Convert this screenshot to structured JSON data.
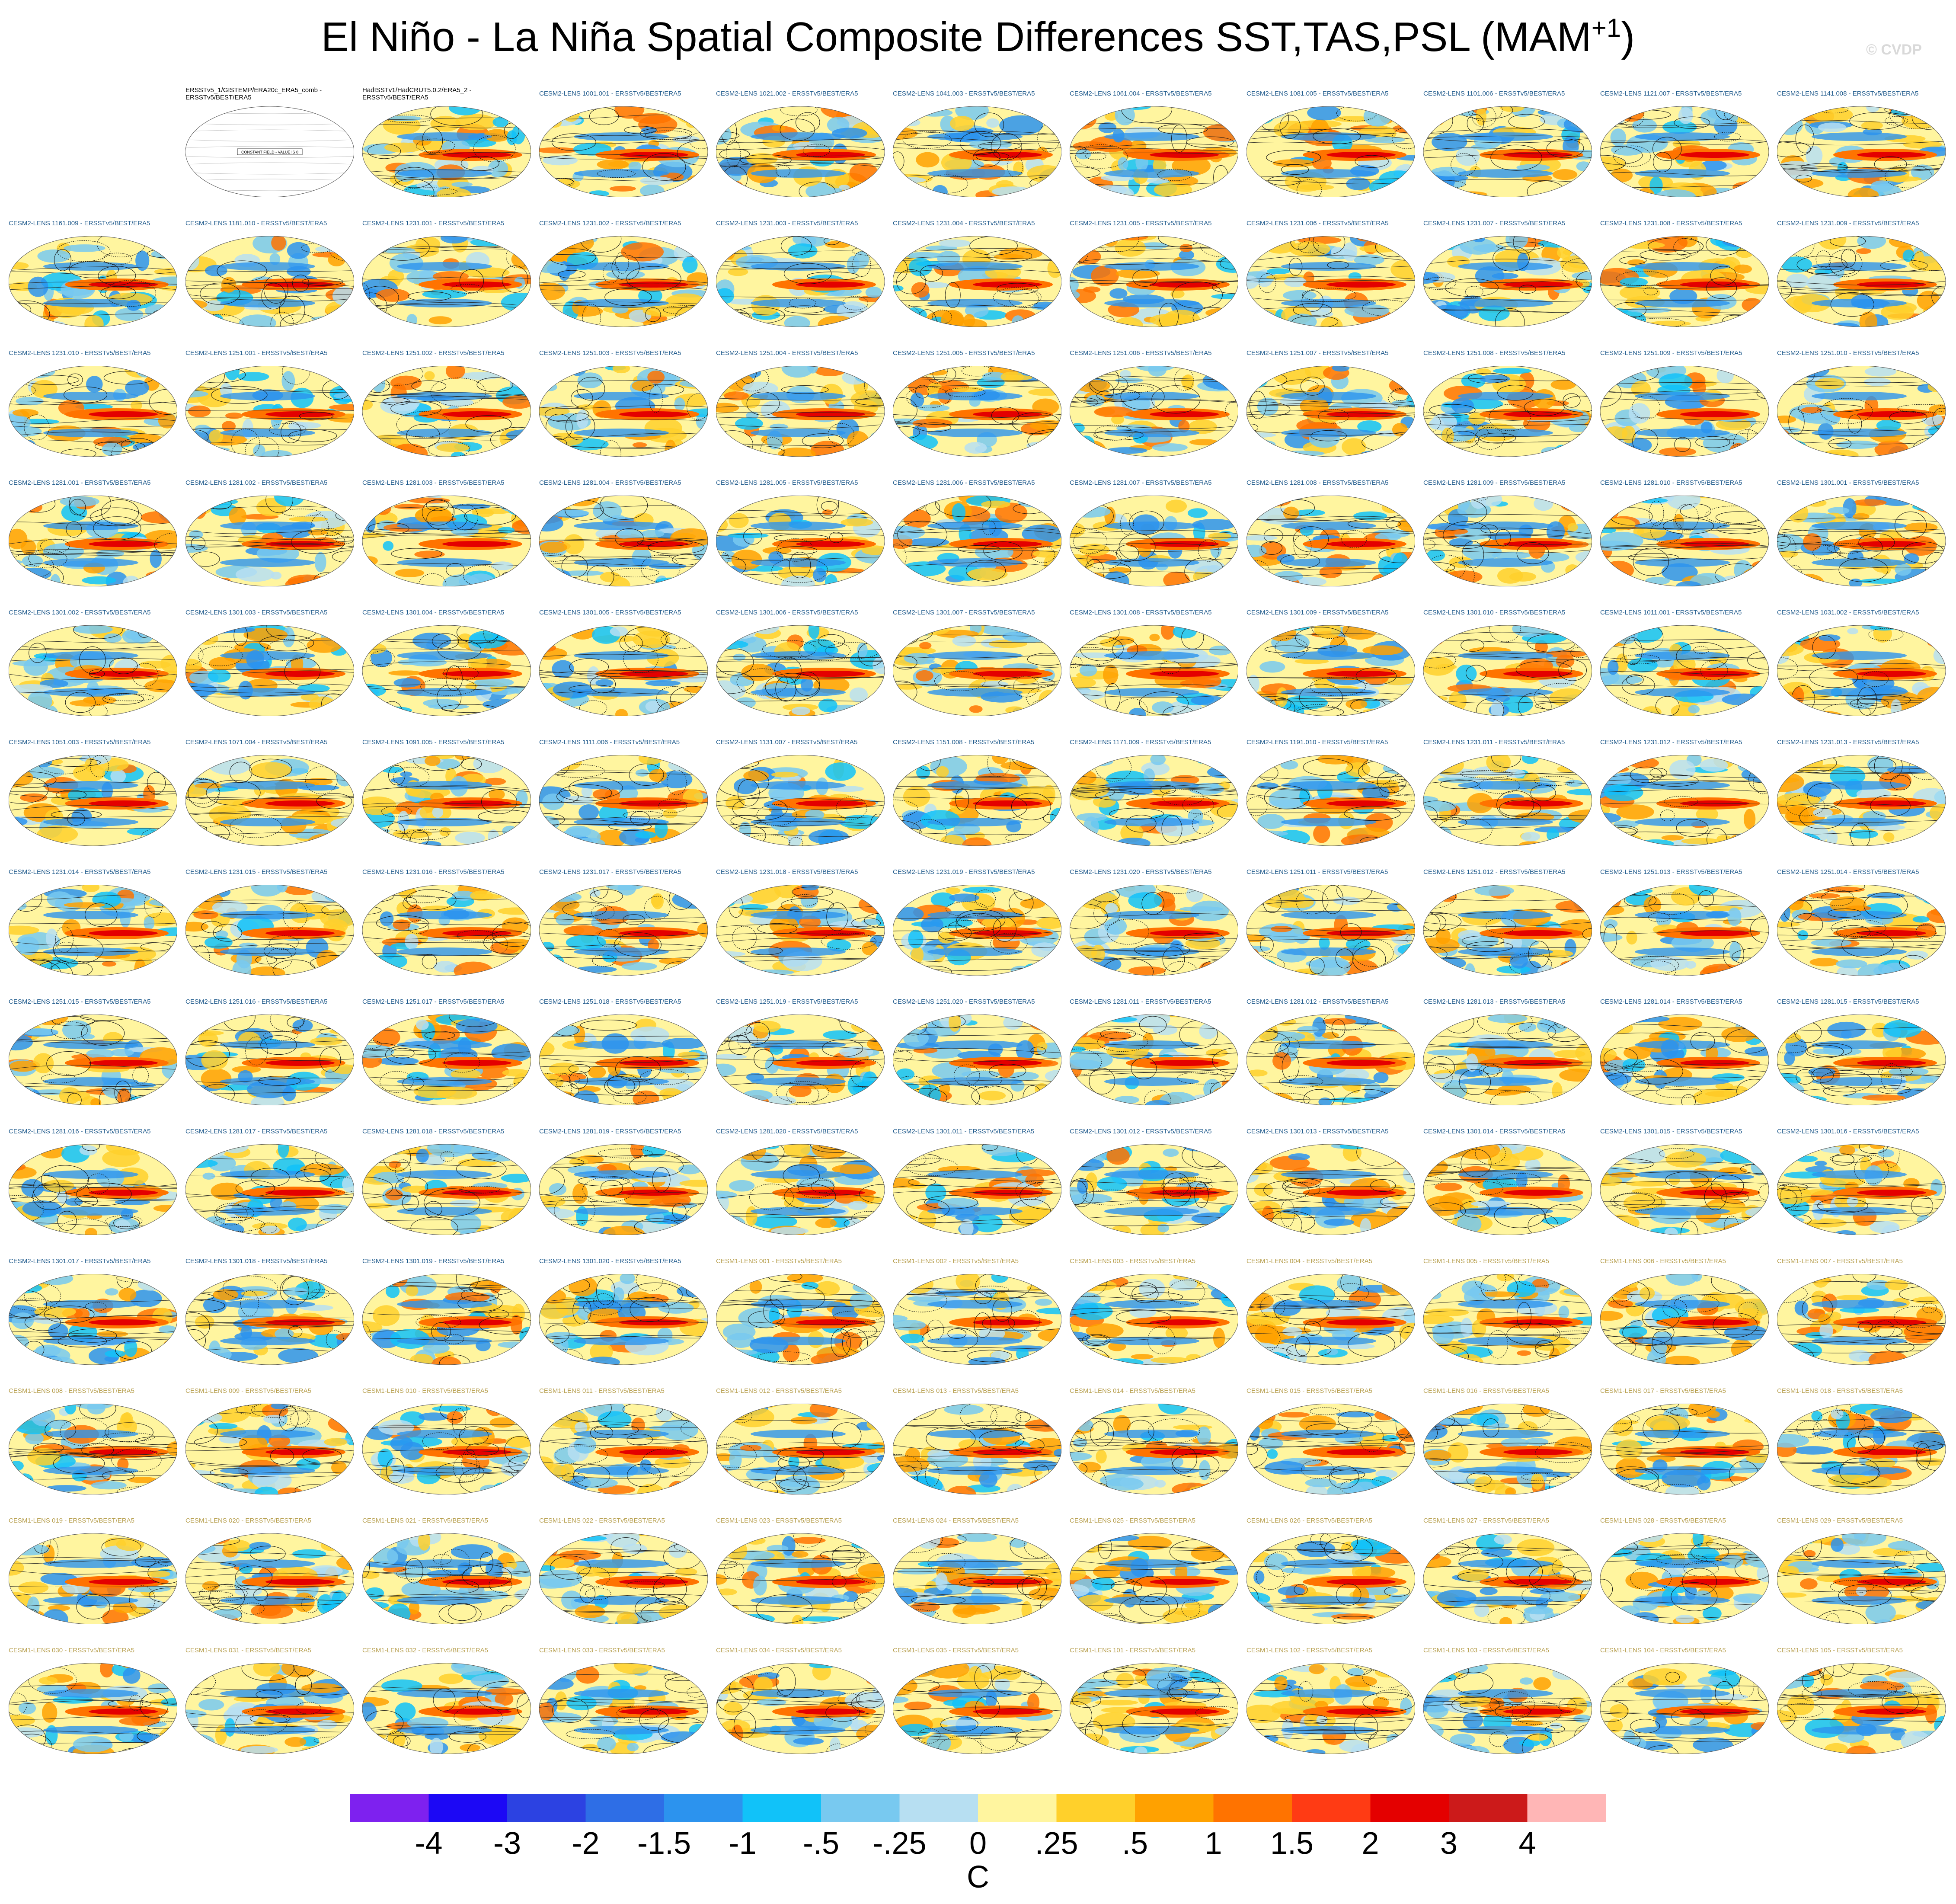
{
  "title": {
    "main": "El Niño - La Niña Spatial Composite Differences SST,TAS,PSL (MAM",
    "superscript": "+1",
    "close": ")"
  },
  "watermark": "© CVDP",
  "colorbar": {
    "unit": "C",
    "colors": [
      "#7e21ef",
      "#1c08f5",
      "#2c42e2",
      "#2e6ee6",
      "#2c93ee",
      "#11c2f9",
      "#78c9f0",
      "#b7dff2",
      "#fff59f",
      "#ffd02b",
      "#ffa100",
      "#ff7300",
      "#ff3b14",
      "#e40000",
      "#cc1a1a",
      "#ffb6b6"
    ],
    "tick_labels": [
      "-4",
      "-3",
      "-2",
      "-1.5",
      "-1",
      "-.5",
      "-.25",
      "0",
      ".25",
      ".5",
      "1",
      "1.5",
      "2",
      "3",
      "4"
    ]
  },
  "panel_labels": [
    "",
    "ERSSTv5_1/GISTEMP/ERA20c_ERA5_comb - ERSSTv5/BEST/ERA5",
    "HadISSTv1/HadCRUT5.0.2/ERA5_2 - ERSSTv5/BEST/ERA5",
    "CESM2-LENS 1001.001 - ERSSTv5/BEST/ERA5",
    "CESM2-LENS 1021.002 - ERSSTv5/BEST/ERA5",
    "CESM2-LENS 1041.003 - ERSSTv5/BEST/ERA5",
    "CESM2-LENS 1061.004 - ERSSTv5/BEST/ERA5",
    "CESM2-LENS 1081.005 - ERSSTv5/BEST/ERA5",
    "CESM2-LENS 1101.006 - ERSSTv5/BEST/ERA5",
    "CESM2-LENS 1121.007 - ERSSTv5/BEST/ERA5",
    "CESM2-LENS 1141.008 - ERSSTv5/BEST/ERA5",
    "CESM2-LENS 1161.009 - ERSSTv5/BEST/ERA5",
    "CESM2-LENS 1181.010 - ERSSTv5/BEST/ERA5",
    "CESM2-LENS 1231.001 - ERSSTv5/BEST/ERA5",
    "CESM2-LENS 1231.002 - ERSSTv5/BEST/ERA5",
    "CESM2-LENS 1231.003 - ERSSTv5/BEST/ERA5",
    "CESM2-LENS 1231.004 - ERSSTv5/BEST/ERA5",
    "CESM2-LENS 1231.005 - ERSSTv5/BEST/ERA5",
    "CESM2-LENS 1231.006 - ERSSTv5/BEST/ERA5",
    "CESM2-LENS 1231.007 - ERSSTv5/BEST/ERA5",
    "CESM2-LENS 1231.008 - ERSSTv5/BEST/ERA5",
    "CESM2-LENS 1231.009 - ERSSTv5/BEST/ERA5",
    "CESM2-LENS 1231.010 - ERSSTv5/BEST/ERA5",
    "CESM2-LENS 1251.001 - ERSSTv5/BEST/ERA5",
    "CESM2-LENS 1251.002 - ERSSTv5/BEST/ERA5",
    "CESM2-LENS 1251.003 - ERSSTv5/BEST/ERA5",
    "CESM2-LENS 1251.004 - ERSSTv5/BEST/ERA5",
    "CESM2-LENS 1251.005 - ERSSTv5/BEST/ERA5",
    "CESM2-LENS 1251.006 - ERSSTv5/BEST/ERA5",
    "CESM2-LENS 1251.007 - ERSSTv5/BEST/ERA5",
    "CESM2-LENS 1251.008 - ERSSTv5/BEST/ERA5",
    "CESM2-LENS 1251.009 - ERSSTv5/BEST/ERA5",
    "CESM2-LENS 1251.010 - ERSSTv5/BEST/ERA5",
    "CESM2-LENS 1281.001 - ERSSTv5/BEST/ERA5",
    "CESM2-LENS 1281.002 - ERSSTv5/BEST/ERA5",
    "CESM2-LENS 1281.003 - ERSSTv5/BEST/ERA5",
    "CESM2-LENS 1281.004 - ERSSTv5/BEST/ERA5",
    "CESM2-LENS 1281.005 - ERSSTv5/BEST/ERA5",
    "CESM2-LENS 1281.006 - ERSSTv5/BEST/ERA5",
    "CESM2-LENS 1281.007 - ERSSTv5/BEST/ERA5",
    "CESM2-LENS 1281.008 - ERSSTv5/BEST/ERA5",
    "CESM2-LENS 1281.009 - ERSSTv5/BEST/ERA5",
    "CESM2-LENS 1281.010 - ERSSTv5/BEST/ERA5",
    "CESM2-LENS 1301.001 - ERSSTv5/BEST/ERA5",
    "CESM2-LENS 1301.002 - ERSSTv5/BEST/ERA5",
    "CESM2-LENS 1301.003 - ERSSTv5/BEST/ERA5",
    "CESM2-LENS 1301.004 - ERSSTv5/BEST/ERA5",
    "CESM2-LENS 1301.005 - ERSSTv5/BEST/ERA5",
    "CESM2-LENS 1301.006 - ERSSTv5/BEST/ERA5",
    "CESM2-LENS 1301.007 - ERSSTv5/BEST/ERA5",
    "CESM2-LENS 1301.008 - ERSSTv5/BEST/ERA5",
    "CESM2-LENS 1301.009 - ERSSTv5/BEST/ERA5",
    "CESM2-LENS 1301.010 - ERSSTv5/BEST/ERA5",
    "CESM2-LENS 1011.001 - ERSSTv5/BEST/ERA5",
    "CESM2-LENS 1031.002 - ERSSTv5/BEST/ERA5",
    "CESM2-LENS 1051.003 - ERSSTv5/BEST/ERA5",
    "CESM2-LENS 1071.004 - ERSSTv5/BEST/ERA5",
    "CESM2-LENS 1091.005 - ERSSTv5/BEST/ERA5",
    "CESM2-LENS 1111.006 - ERSSTv5/BEST/ERA5",
    "CESM2-LENS 1131.007 - ERSSTv5/BEST/ERA5",
    "CESM2-LENS 1151.008 - ERSSTv5/BEST/ERA5",
    "CESM2-LENS 1171.009 - ERSSTv5/BEST/ERA5",
    "CESM2-LENS 1191.010 - ERSSTv5/BEST/ERA5",
    "CESM2-LENS 1231.011 - ERSSTv5/BEST/ERA5",
    "CESM2-LENS 1231.012 - ERSSTv5/BEST/ERA5",
    "CESM2-LENS 1231.013 - ERSSTv5/BEST/ERA5",
    "CESM2-LENS 1231.014 - ERSSTv5/BEST/ERA5",
    "CESM2-LENS 1231.015 - ERSSTv5/BEST/ERA5",
    "CESM2-LENS 1231.016 - ERSSTv5/BEST/ERA5",
    "CESM2-LENS 1231.017 - ERSSTv5/BEST/ERA5",
    "CESM2-LENS 1231.018 - ERSSTv5/BEST/ERA5",
    "CESM2-LENS 1231.019 - ERSSTv5/BEST/ERA5",
    "CESM2-LENS 1231.020 - ERSSTv5/BEST/ERA5",
    "CESM2-LENS 1251.011 - ERSSTv5/BEST/ERA5",
    "CESM2-LENS 1251.012 - ERSSTv5/BEST/ERA5",
    "CESM2-LENS 1251.013 - ERSSTv5/BEST/ERA5",
    "CESM2-LENS 1251.014 - ERSSTv5/BEST/ERA5",
    "CESM2-LENS 1251.015 - ERSSTv5/BEST/ERA5",
    "CESM2-LENS 1251.016 - ERSSTv5/BEST/ERA5",
    "CESM2-LENS 1251.017 - ERSSTv5/BEST/ERA5",
    "CESM2-LENS 1251.018 - ERSSTv5/BEST/ERA5",
    "CESM2-LENS 1251.019 - ERSSTv5/BEST/ERA5",
    "CESM2-LENS 1251.020 - ERSSTv5/BEST/ERA5",
    "CESM2-LENS 1281.011 - ERSSTv5/BEST/ERA5",
    "CESM2-LENS 1281.012 - ERSSTv5/BEST/ERA5",
    "CESM2-LENS 1281.013 - ERSSTv5/BEST/ERA5",
    "CESM2-LENS 1281.014 - ERSSTv5/BEST/ERA5",
    "CESM2-LENS 1281.015 - ERSSTv5/BEST/ERA5",
    "CESM2-LENS 1281.016 - ERSSTv5/BEST/ERA5",
    "CESM2-LENS 1281.017 - ERSSTv5/BEST/ERA5",
    "CESM2-LENS 1281.018 - ERSSTv5/BEST/ERA5",
    "CESM2-LENS 1281.019 - ERSSTv5/BEST/ERA5",
    "CESM2-LENS 1281.020 - ERSSTv5/BEST/ERA5",
    "CESM2-LENS 1301.011 - ERSSTv5/BEST/ERA5",
    "CESM2-LENS 1301.012 - ERSSTv5/BEST/ERA5",
    "CESM2-LENS 1301.013 - ERSSTv5/BEST/ERA5",
    "CESM2-LENS 1301.014 - ERSSTv5/BEST/ERA5",
    "CESM2-LENS 1301.015 - ERSSTv5/BEST/ERA5",
    "CESM2-LENS 1301.016 - ERSSTv5/BEST/ERA5",
    "CESM2-LENS 1301.017 - ERSSTv5/BEST/ERA5",
    "CESM2-LENS 1301.018 - ERSSTv5/BEST/ERA5",
    "CESM2-LENS 1301.019 - ERSSTv5/BEST/ERA5",
    "CESM2-LENS 1301.020 - ERSSTv5/BEST/ERA5",
    "CESM1-LENS 001 - ERSSTv5/BEST/ERA5",
    "CESM1-LENS 002 - ERSSTv5/BEST/ERA5",
    "CESM1-LENS 003 - ERSSTv5/BEST/ERA5",
    "CESM1-LENS 004 - ERSSTv5/BEST/ERA5",
    "CESM1-LENS 005 - ERSSTv5/BEST/ERA5",
    "CESM1-LENS 006 - ERSSTv5/BEST/ERA5",
    "CESM1-LENS 007 - ERSSTv5/BEST/ERA5",
    "CESM1-LENS 008 - ERSSTv5/BEST/ERA5",
    "CESM1-LENS 009 - ERSSTv5/BEST/ERA5",
    "CESM1-LENS 010 - ERSSTv5/BEST/ERA5",
    "CESM1-LENS 011 - ERSSTv5/BEST/ERA5",
    "CESM1-LENS 012 - ERSSTv5/BEST/ERA5",
    "CESM1-LENS 013 - ERSSTv5/BEST/ERA5",
    "CESM1-LENS 014 - ERSSTv5/BEST/ERA5",
    "CESM1-LENS 015 - ERSSTv5/BEST/ERA5",
    "CESM1-LENS 016 - ERSSTv5/BEST/ERA5",
    "CESM1-LENS 017 - ERSSTv5/BEST/ERA5",
    "CESM1-LENS 018 - ERSSTv5/BEST/ERA5",
    "CESM1-LENS 019 - ERSSTv5/BEST/ERA5",
    "CESM1-LENS 020 - ERSSTv5/BEST/ERA5",
    "CESM1-LENS 021 - ERSSTv5/BEST/ERA5",
    "CESM1-LENS 022 - ERSSTv5/BEST/ERA5",
    "CESM1-LENS 023 - ERSSTv5/BEST/ERA5",
    "CESM1-LENS 024 - ERSSTv5/BEST/ERA5",
    "CESM1-LENS 025 - ERSSTv5/BEST/ERA5",
    "CESM1-LENS 026 - ERSSTv5/BEST/ERA5",
    "CESM1-LENS 027 - ERSSTv5/BEST/ERA5",
    "CESM1-LENS 028 - ERSSTv5/BEST/ERA5",
    "CESM1-LENS 029 - ERSSTv5/BEST/ERA5",
    "CESM1-LENS 030 - ERSSTv5/BEST/ERA5",
    "CESM1-LENS 031 - ERSSTv5/BEST/ERA5",
    "CESM1-LENS 032 - ERSSTv5/BEST/ERA5",
    "CESM1-LENS 033 - ERSSTv5/BEST/ERA5",
    "CESM1-LENS 034 - ERSSTv5/BEST/ERA5",
    "CESM1-LENS 035 - ERSSTv5/BEST/ERA5",
    "CESM1-LENS 101 - ERSSTv5/BEST/ERA5",
    "CESM1-LENS 102 - ERSSTv5/BEST/ERA5",
    "CESM1-LENS 103 - ERSSTv5/BEST/ERA5",
    "CESM1-LENS 104 - ERSSTv5/BEST/ERA5",
    "CESM1-LENS 105 - ERSSTv5/BEST/ERA5"
  ],
  "constant_field_text": "CONSTANT FIELD - VALUE IS 0",
  "label_colors": {
    "obs": "#000000",
    "cesm2": "#1f5a8c",
    "cesm1": "#b8a050"
  }
}
